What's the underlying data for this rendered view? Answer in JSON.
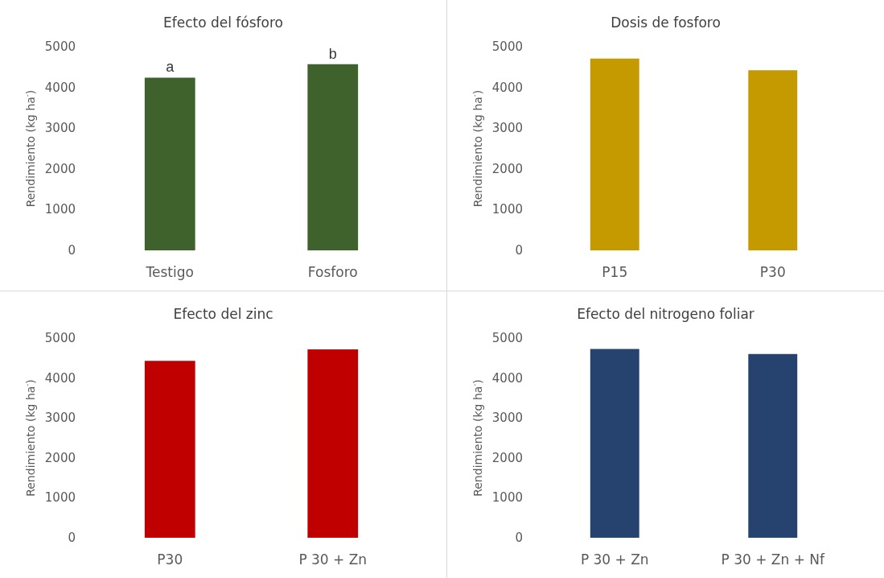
{
  "chart_data": [
    {
      "type": "bar",
      "title": "Efecto del fósforo",
      "ylabel": "Rendimiento (kg ha$^{-}$)",
      "categories": [
        "Testigo",
        "Fosforo"
      ],
      "values": [
        4240,
        4570
      ],
      "color": "#3f612c",
      "ylim": [
        0,
        5000
      ],
      "yticks": [
        0,
        1000,
        2000,
        3000,
        4000,
        5000
      ],
      "annotations": [
        {
          "text": "a",
          "x": "Testigo",
          "y": 4240
        },
        {
          "text": "b",
          "x": "Fosforo",
          "y": 4570
        }
      ]
    },
    {
      "type": "bar",
      "title": "Dosis de fosforo",
      "ylabel": "Rendimiento (kg ha$^{-}$)",
      "categories": [
        "P15",
        "P30"
      ],
      "values": [
        4710,
        4420
      ],
      "color": "#c49a00",
      "ylim": [
        0,
        5000
      ],
      "yticks": [
        0,
        1000,
        2000,
        3000,
        4000,
        5000
      ]
    },
    {
      "type": "bar",
      "title": "Efecto del zinc",
      "ylabel": "Rendimiento (kg ha$^{-}$)",
      "categories": [
        "P30",
        "P 30 + Zn"
      ],
      "values": [
        4430,
        4720
      ],
      "color": "#c00000",
      "ylim": [
        0,
        5000
      ],
      "yticks": [
        0,
        1000,
        2000,
        3000,
        4000,
        5000
      ]
    },
    {
      "type": "bar",
      "title": "Efecto del nitrogeno foliar",
      "ylabel": "Rendimiento (kg ha$^{-}$)",
      "categories": [
        "P 30 + Zn",
        "P 30 + Zn + Nf"
      ],
      "values": [
        4730,
        4600
      ],
      "color": "#264370",
      "ylim": [
        0,
        5000
      ],
      "yticks": [
        0,
        1000,
        2000,
        3000,
        4000,
        5000
      ]
    }
  ]
}
